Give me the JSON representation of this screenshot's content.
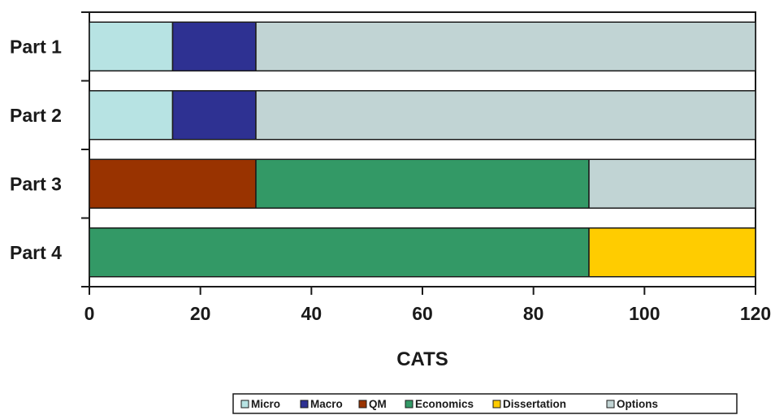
{
  "chart_data": {
    "type": "bar",
    "orientation": "horizontal",
    "stacked": true,
    "categories": [
      "Part 1",
      "Part 2",
      "Part 3",
      "Part 4"
    ],
    "xlabel": "CATS",
    "ylabel": "",
    "title": "",
    "xlim": [
      0,
      120
    ],
    "x_ticks": [
      0,
      20,
      40,
      60,
      80,
      100,
      120
    ],
    "grid": false,
    "legend_position": "bottom",
    "series": [
      {
        "name": "Micro",
        "color": "#b7e3e3",
        "values": [
          15,
          15,
          0,
          0
        ]
      },
      {
        "name": "Macro",
        "color": "#2e3192",
        "values": [
          15,
          15,
          0,
          0
        ]
      },
      {
        "name": "QM",
        "color": "#993300",
        "values": [
          0,
          0,
          30,
          0
        ]
      },
      {
        "name": "Economics",
        "color": "#339966",
        "values": [
          0,
          0,
          60,
          90
        ]
      },
      {
        "name": "Dissertation",
        "color": "#ffcc00",
        "values": [
          0,
          0,
          0,
          30
        ]
      },
      {
        "name": "Options",
        "color": "#c1d4d4",
        "values": [
          90,
          90,
          30,
          0
        ]
      }
    ]
  }
}
